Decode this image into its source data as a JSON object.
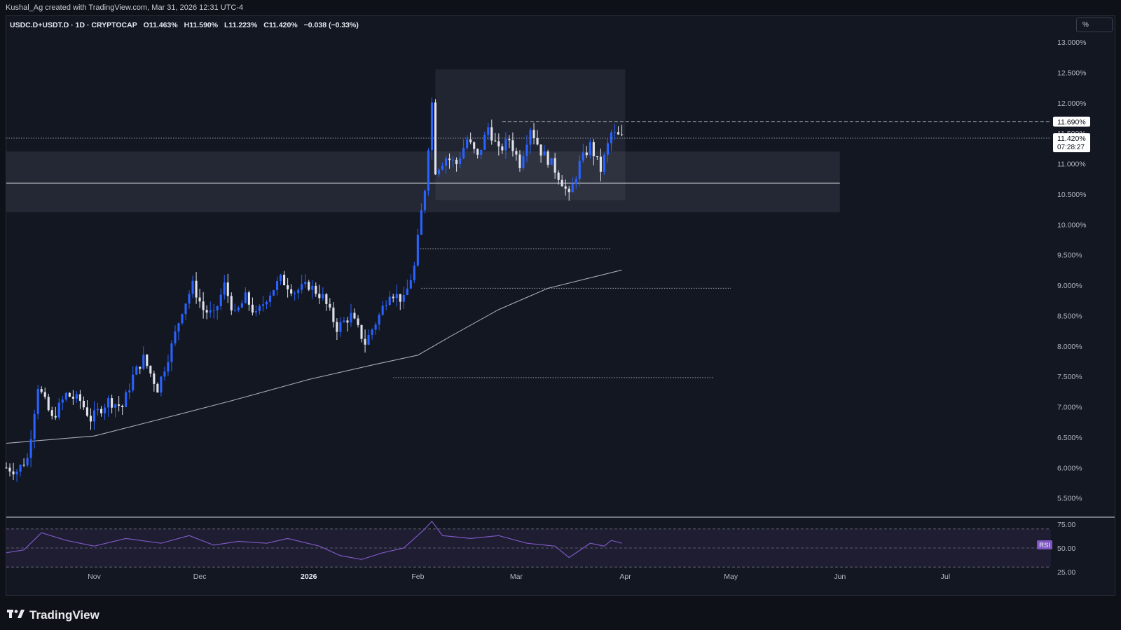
{
  "header": {
    "attribution": "Kushal_Ag created with TradingView.com, Mar 31, 2026 12:31 UTC-4"
  },
  "legend": {
    "symbol": "USDC.D+USDT.D · 1D · CRYPTOCAP",
    "open": "O11.463%",
    "high": "H11.590%",
    "low": "L11.223%",
    "close": "C11.420%",
    "change": "−0.038 (−0.33%)"
  },
  "scale_button": "%",
  "price_axis": {
    "ticks": [
      "13.000%",
      "12.500%",
      "12.000%",
      "11.500%",
      "11.000%",
      "10.500%",
      "10.000%",
      "9.500%",
      "9.000%",
      "8.500%",
      "8.000%",
      "7.500%",
      "7.000%",
      "6.500%",
      "6.000%",
      "5.500%"
    ],
    "level_label": "11.690%",
    "last_price": "11.420%",
    "countdown": "07:28:27"
  },
  "time_axis": {
    "labels": [
      "Nov",
      "Dec",
      "2026",
      "Feb",
      "Mar",
      "Apr",
      "May",
      "Jun",
      "Jul"
    ]
  },
  "rsi": {
    "badge": "RSI",
    "ticks": [
      "75.00",
      "50.00",
      "25.00"
    ]
  },
  "brand": {
    "logo_text": "TradingView"
  },
  "chart_data": {
    "type": "candlestick",
    "timeframe": "1D",
    "y_unit": "%",
    "ylim": [
      5.3,
      13.3
    ],
    "x_range": [
      "2025-10-07",
      "2026-07-31"
    ],
    "up_color": "#2962ff",
    "down_color": "#e0e3eb",
    "background": "#131722",
    "anchors": [
      [
        "2025-10-07",
        6.0
      ],
      [
        "2025-10-10",
        5.95
      ],
      [
        "2025-10-13",
        6.15
      ],
      [
        "2025-10-16",
        7.35
      ],
      [
        "2025-10-20",
        6.8
      ],
      [
        "2025-10-24",
        7.2
      ],
      [
        "2025-10-28",
        7.1
      ],
      [
        "2025-10-31",
        6.8
      ],
      [
        "2025-11-05",
        7.1
      ],
      [
        "2025-11-09",
        7.0
      ],
      [
        "2025-11-12",
        7.5
      ],
      [
        "2025-11-15",
        7.8
      ],
      [
        "2025-11-19",
        7.3
      ],
      [
        "2025-11-23",
        8.0
      ],
      [
        "2025-11-26",
        8.6
      ],
      [
        "2025-11-29",
        9.0
      ],
      [
        "2025-12-02",
        8.6
      ],
      [
        "2025-12-05",
        8.5
      ],
      [
        "2025-12-08",
        9.0
      ],
      [
        "2025-12-11",
        8.5
      ],
      [
        "2025-12-14",
        8.8
      ],
      [
        "2025-12-17",
        8.5
      ],
      [
        "2025-12-20",
        8.8
      ],
      [
        "2025-12-24",
        9.1
      ],
      [
        "2025-12-28",
        8.9
      ],
      [
        "2026-01-01",
        9.0
      ],
      [
        "2026-01-05",
        8.8
      ],
      [
        "2026-01-09",
        8.3
      ],
      [
        "2026-01-13",
        8.5
      ],
      [
        "2026-01-17",
        8.05
      ],
      [
        "2026-01-21",
        8.5
      ],
      [
        "2026-01-24",
        8.9
      ],
      [
        "2026-01-28",
        8.75
      ],
      [
        "2026-01-31",
        9.3
      ],
      [
        "2026-02-02",
        10.2
      ],
      [
        "2026-02-03",
        10.6
      ],
      [
        "2026-02-05",
        12.0
      ],
      [
        "2026-02-06",
        10.9
      ],
      [
        "2026-02-09",
        11.1
      ],
      [
        "2026-02-12",
        11.0
      ],
      [
        "2026-02-15",
        11.4
      ],
      [
        "2026-02-18",
        11.1
      ],
      [
        "2026-02-21",
        11.6
      ],
      [
        "2026-02-24",
        11.2
      ],
      [
        "2026-02-27",
        11.4
      ],
      [
        "2026-03-02",
        11.0
      ],
      [
        "2026-03-05",
        11.6
      ],
      [
        "2026-03-08",
        11.2
      ],
      [
        "2026-03-11",
        11.0
      ],
      [
        "2026-03-14",
        10.7
      ],
      [
        "2026-03-16",
        10.45
      ],
      [
        "2026-03-19",
        11.0
      ],
      [
        "2026-03-22",
        11.3
      ],
      [
        "2026-03-25",
        10.9
      ],
      [
        "2026-03-28",
        11.5
      ],
      [
        "2026-03-31",
        11.42
      ]
    ],
    "moving_average": [
      [
        "2025-10-07",
        6.4
      ],
      [
        "2025-11-01",
        6.52
      ],
      [
        "2025-11-20",
        6.8
      ],
      [
        "2025-12-10",
        7.1
      ],
      [
        "2026-01-01",
        7.45
      ],
      [
        "2026-01-20",
        7.7
      ],
      [
        "2026-02-01",
        7.85
      ],
      [
        "2026-02-10",
        8.15
      ],
      [
        "2026-02-24",
        8.6
      ],
      [
        "2026-03-10",
        8.95
      ],
      [
        "2026-03-31",
        9.25
      ]
    ],
    "boxes": [
      {
        "from": "2026-02-06",
        "to": "2026-04-01",
        "low": 10.4,
        "high": 12.55
      },
      {
        "from": "2025-10-07",
        "to": "2026-06-01",
        "low": 10.2,
        "high": 11.2
      }
    ],
    "levels": [
      {
        "value": 10.68,
        "style": "solid",
        "from": "2025-10-07",
        "to": "2026-06-01"
      },
      {
        "value": 11.69,
        "style": "dashed",
        "from": "2026-02-25",
        "to": "2026-07-31"
      },
      {
        "value": 11.42,
        "style": "dotted",
        "from": "2025-10-07",
        "to": "2026-07-31"
      },
      {
        "value": 9.6,
        "style": "dotted",
        "from": "2026-02-01",
        "to": "2026-03-28"
      },
      {
        "value": 8.95,
        "style": "dotted",
        "from": "2026-02-02",
        "to": "2026-05-01"
      },
      {
        "value": 7.48,
        "style": "dotted",
        "from": "2026-01-25",
        "to": "2026-04-26"
      }
    ],
    "rsi": {
      "ylim": [
        25,
        75
      ],
      "bands": [
        30,
        70
      ],
      "midline": 50,
      "anchors": [
        [
          "2025-10-07",
          45
        ],
        [
          "2025-10-12",
          48
        ],
        [
          "2025-10-17",
          66
        ],
        [
          "2025-10-24",
          58
        ],
        [
          "2025-11-01",
          52
        ],
        [
          "2025-11-10",
          60
        ],
        [
          "2025-11-20",
          55
        ],
        [
          "2025-11-28",
          63
        ],
        [
          "2025-12-05",
          53
        ],
        [
          "2025-12-12",
          57
        ],
        [
          "2025-12-20",
          55
        ],
        [
          "2025-12-26",
          60
        ],
        [
          "2026-01-04",
          52
        ],
        [
          "2026-01-10",
          42
        ],
        [
          "2026-01-16",
          38
        ],
        [
          "2026-01-22",
          45
        ],
        [
          "2026-01-28",
          50
        ],
        [
          "2026-02-03",
          70
        ],
        [
          "2026-02-05",
          78
        ],
        [
          "2026-02-08",
          63
        ],
        [
          "2026-02-16",
          60
        ],
        [
          "2026-02-24",
          63
        ],
        [
          "2026-03-04",
          55
        ],
        [
          "2026-03-12",
          52
        ],
        [
          "2026-03-16",
          40
        ],
        [
          "2026-03-22",
          55
        ],
        [
          "2026-03-26",
          52
        ],
        [
          "2026-03-28",
          58
        ],
        [
          "2026-03-31",
          55
        ]
      ]
    }
  }
}
